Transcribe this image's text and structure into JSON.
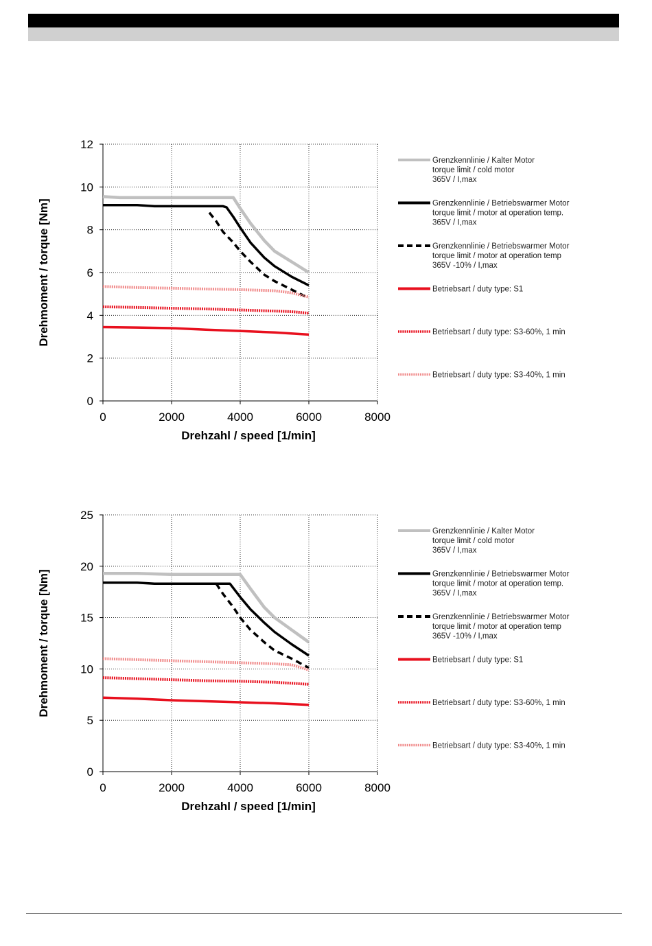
{
  "chart_data": [
    {
      "type": "line",
      "xlabel": "Drehzahl / speed [1/min]",
      "ylabel": "Drehmoment / torque [Nm]",
      "xlim": [
        0,
        8000
      ],
      "ylim": [
        0,
        12
      ],
      "xticks": [
        "0",
        "2000",
        "4000",
        "6000",
        "8000"
      ],
      "yticks": [
        "0",
        "2",
        "4",
        "6",
        "8",
        "10",
        "12"
      ],
      "grid": true,
      "legend_position": "right",
      "series": [
        {
          "name": "Grenzkennlinie / Kalter Motor\ntorque limit / cold  motor\n365V / I,max",
          "color": "#c0c0c0",
          "style": "solid",
          "x": [
            0,
            500,
            1000,
            2000,
            3000,
            3500,
            3800,
            4000,
            4300,
            4700,
            5000,
            5500,
            6000
          ],
          "y": [
            9.55,
            9.5,
            9.5,
            9.5,
            9.5,
            9.5,
            9.5,
            9.0,
            8.3,
            7.5,
            7.0,
            6.5,
            6.0
          ]
        },
        {
          "name": "Grenzkennlinie / Betriebswarmer Motor\ntorque limit / motor at operation temp.\n365V / I,max",
          "color": "#000000",
          "style": "solid",
          "x": [
            0,
            500,
            1000,
            1500,
            2000,
            2500,
            3000,
            3500,
            3600,
            3800,
            4000,
            4300,
            4700,
            5000,
            5500,
            6000
          ],
          "y": [
            9.15,
            9.15,
            9.15,
            9.1,
            9.1,
            9.1,
            9.1,
            9.1,
            9.05,
            8.6,
            8.1,
            7.4,
            6.7,
            6.3,
            5.8,
            5.4
          ]
        },
        {
          "name": "Grenzkennlinie / Betriebswarmer Motor\ntorque limit / motor at operation temp\n365V -10% / I,max",
          "color": "#000000",
          "style": "dashed",
          "x": [
            3100,
            3300,
            3500,
            3800,
            4000,
            4300,
            4700,
            5000,
            5500,
            6000
          ],
          "y": [
            8.8,
            8.4,
            7.9,
            7.4,
            7.0,
            6.5,
            5.9,
            5.6,
            5.2,
            4.8
          ]
        },
        {
          "name": "Betriebsart / duty type: S1",
          "color": "#e8101e",
          "style": "solid",
          "x": [
            0,
            1000,
            2000,
            3000,
            4000,
            5000,
            6000
          ],
          "y": [
            3.45,
            3.43,
            3.4,
            3.33,
            3.27,
            3.2,
            3.1
          ]
        },
        {
          "name": "Betriebsart / duty type: S3-60%, 1 min",
          "color": "#e8101e",
          "style": "dotted",
          "x": [
            0,
            1000,
            2000,
            3000,
            4000,
            5000,
            5500,
            6000
          ],
          "y": [
            4.4,
            4.37,
            4.33,
            4.3,
            4.25,
            4.2,
            4.17,
            4.1
          ]
        },
        {
          "name": "Betriebsart / duty type: S3-40%, 1 min",
          "color": "#f08a8a",
          "style": "dotted",
          "x": [
            0,
            1000,
            2000,
            3000,
            4000,
            5000,
            5500,
            6000
          ],
          "y": [
            5.35,
            5.3,
            5.27,
            5.23,
            5.2,
            5.15,
            5.05,
            4.85
          ]
        }
      ]
    },
    {
      "type": "line",
      "xlabel": "Drehzahl / speed [1/min]",
      "ylabel": "Drehmoment / torque [Nm]",
      "xlim": [
        0,
        8000
      ],
      "ylim": [
        0,
        25
      ],
      "xticks": [
        "0",
        "2000",
        "4000",
        "6000",
        "8000"
      ],
      "yticks": [
        "0",
        "5",
        "10",
        "15",
        "20",
        "25"
      ],
      "grid": true,
      "legend_position": "right",
      "series": [
        {
          "name": "Grenzkennlinie / Kalter Motor\ntorque limit / cold  motor\n365V / I,max",
          "color": "#c0c0c0",
          "style": "solid",
          "x": [
            0,
            1000,
            2000,
            3000,
            4000,
            4300,
            4700,
            5000,
            5500,
            6000
          ],
          "y": [
            19.3,
            19.3,
            19.2,
            19.2,
            19.2,
            17.8,
            16.0,
            15.0,
            13.8,
            12.6
          ]
        },
        {
          "name": "Grenzkennlinie / Betriebswarmer Motor\ntorque limit / motor at operation temp.\n365V / I,max",
          "color": "#000000",
          "style": "solid",
          "x": [
            0,
            1000,
            1500,
            2000,
            3000,
            3700,
            4000,
            4300,
            4700,
            5000,
            5500,
            6000
          ],
          "y": [
            18.4,
            18.4,
            18.3,
            18.3,
            18.3,
            18.3,
            17.0,
            15.8,
            14.5,
            13.6,
            12.4,
            11.3
          ]
        },
        {
          "name": "Grenzkennlinie / Betriebswarmer Motor\ntorque limit / motor at operation temp\n365V -10% / I,max",
          "color": "#000000",
          "style": "dashed",
          "x": [
            3300,
            3500,
            3800,
            4000,
            4300,
            4700,
            5000,
            5500,
            6000
          ],
          "y": [
            18.3,
            17.3,
            16.0,
            15.0,
            13.8,
            12.6,
            11.8,
            11.0,
            10.1
          ]
        },
        {
          "name": "Betriebsart / duty type: S1",
          "color": "#e8101e",
          "style": "solid",
          "x": [
            0,
            1000,
            2000,
            3000,
            4000,
            5000,
            6000
          ],
          "y": [
            7.2,
            7.1,
            6.95,
            6.85,
            6.75,
            6.65,
            6.5
          ]
        },
        {
          "name": "Betriebsart / duty type: S3-60%, 1 min",
          "color": "#e8101e",
          "style": "dotted",
          "x": [
            0,
            1000,
            2000,
            3000,
            4000,
            5000,
            6000
          ],
          "y": [
            9.15,
            9.05,
            8.95,
            8.85,
            8.8,
            8.7,
            8.5
          ]
        },
        {
          "name": "Betriebsart / duty type: S3-40%, 1 min",
          "color": "#f08a8a",
          "style": "dotted",
          "x": [
            0,
            1000,
            2000,
            3000,
            4000,
            5000,
            5500,
            6000
          ],
          "y": [
            11.0,
            10.9,
            10.8,
            10.7,
            10.6,
            10.5,
            10.4,
            9.9
          ]
        }
      ]
    }
  ]
}
